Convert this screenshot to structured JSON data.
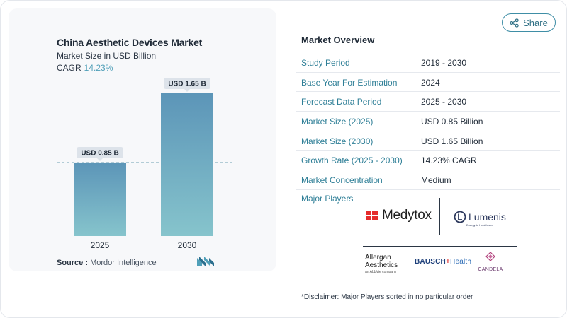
{
  "share": {
    "label": "Share",
    "icon": "share-icon"
  },
  "chart": {
    "title": "China Aesthetic Devices Market",
    "subtitle": "Market Size in USD Billion",
    "cagr_label": "CAGR",
    "cagr_value": "14.23%",
    "source_label": "Source :",
    "source_value": "Mordor Intelligence",
    "colors": {
      "bar_top": "#5c95b8",
      "bar_bottom": "#86c4cc",
      "label_bg": "#dde3ea",
      "dash": "#6c9fb3"
    }
  },
  "chart_data": {
    "type": "bar",
    "title": "China Aesthetic Devices Market",
    "subtitle": "Market Size in USD Billion",
    "categories": [
      "2025",
      "2030"
    ],
    "values": [
      0.85,
      1.65
    ],
    "data_labels": [
      "USD 0.85 B",
      "USD 1.65 B"
    ],
    "reference_line": 0.85,
    "ylim": [
      0,
      1.65
    ]
  },
  "overview": {
    "title": "Market Overview",
    "rows": [
      {
        "label": "Study Period",
        "value": "2019 - 2030"
      },
      {
        "label": "Base Year For Estimation",
        "value": "2024"
      },
      {
        "label": "Forecast Data Period",
        "value": "2025 - 2030"
      },
      {
        "label": "Market Size (2025)",
        "value": "USD 0.85 Billion"
      },
      {
        "label": "Market Size (2030)",
        "value": "USD 1.65 Billion"
      },
      {
        "label": "Growth Rate (2025 - 2030)",
        "value": "14.23% CAGR"
      },
      {
        "label": "Market Concentration",
        "value": "Medium"
      }
    ]
  },
  "players": {
    "title": "Major Players",
    "medytox": "Medytox",
    "lumenis": "Lumenis",
    "lumenis_tag": "Energy to Healthcare",
    "allergan_1": "Allergan",
    "allergan_2": "Aesthetics",
    "allergan_3": "an AbbVie company",
    "bausch": "BAUSCH",
    "bausch_health": "Health",
    "candela": "CANDELA"
  },
  "disclaimer": "*Disclaimer: Major Players sorted in no particular order"
}
